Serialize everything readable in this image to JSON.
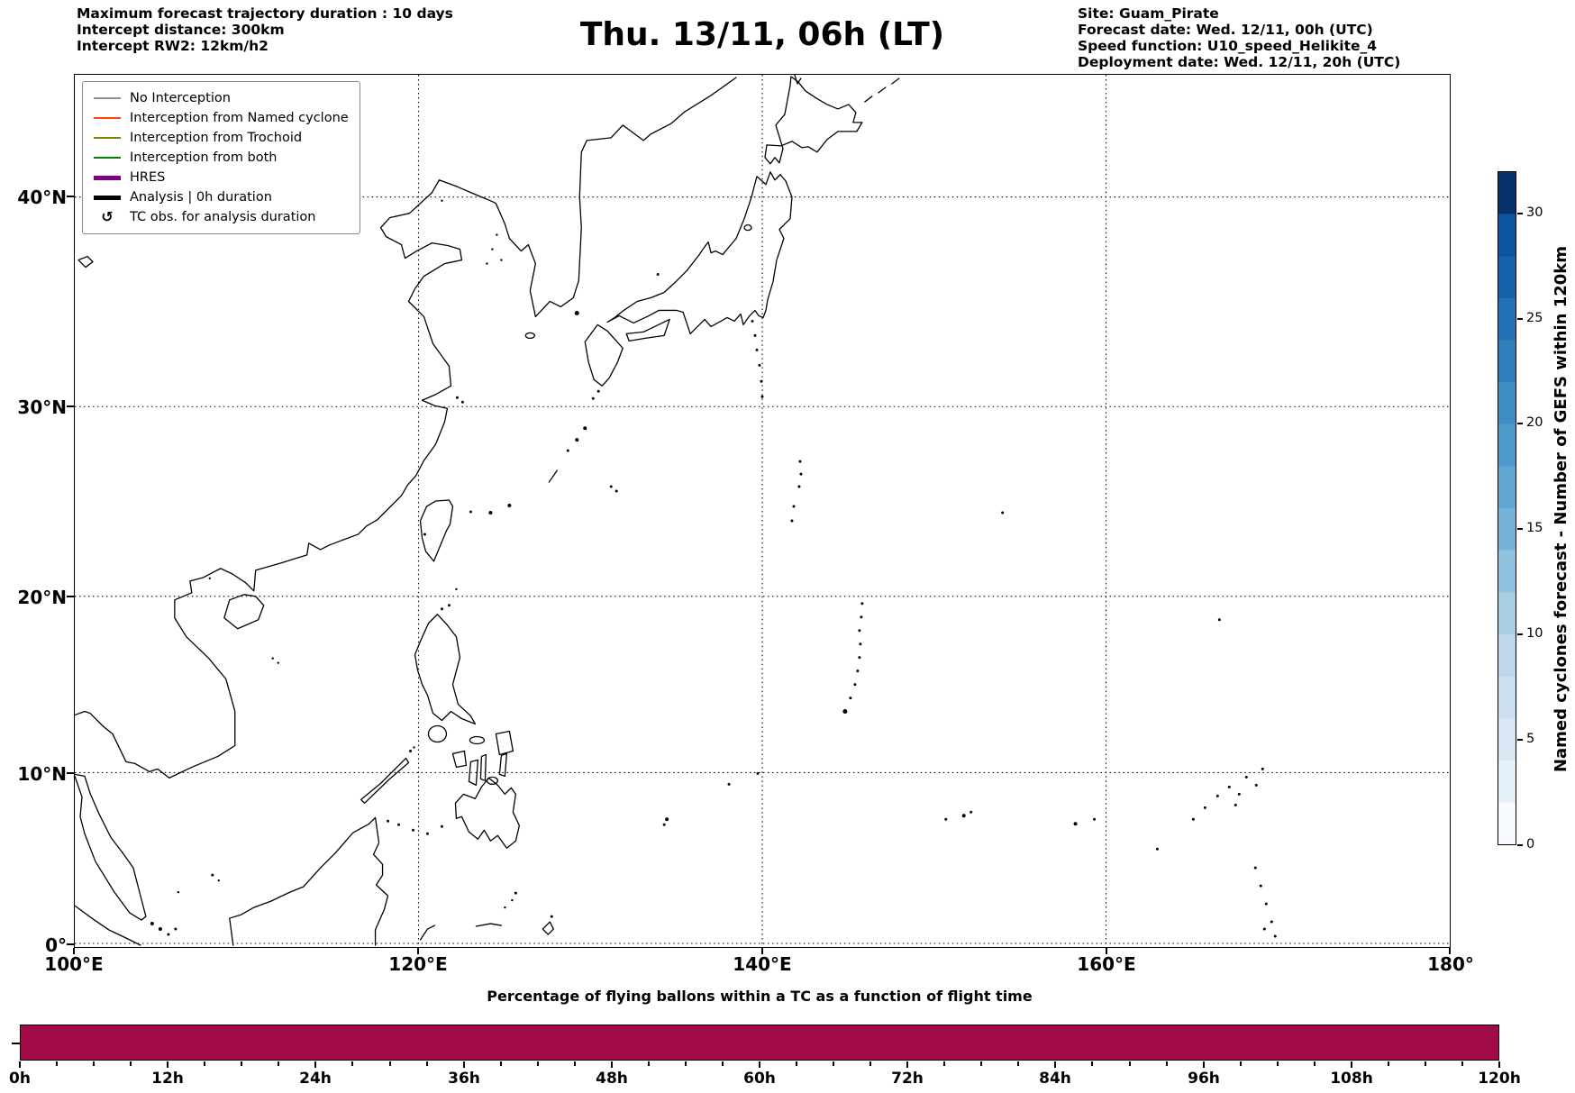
{
  "header": {
    "info_left": {
      "line1": "Maximum forecast trajectory duration : 10 days",
      "line2": "Intercept distance: 300km",
      "line3": "Intercept RW2: 12km/h2"
    },
    "title": "Thu. 13/11, 06h (LT)",
    "info_right": {
      "line1": "Site: Guam_Pirate",
      "line2": "Forecast date: Wed. 12/11, 00h (UTC)",
      "line3": "Speed function: U10_speed_Helikite_4",
      "line4": "Deployment date: Wed. 12/11, 20h (UTC)"
    }
  },
  "legend": {
    "items": [
      {
        "label": "No Interception",
        "color": "#909090",
        "line": "thin"
      },
      {
        "label": "Interception from Named cyclone",
        "color": "#ff4500",
        "line": "thin"
      },
      {
        "label": "Interception from Trochoid",
        "color": "#808000",
        "line": "thin"
      },
      {
        "label": "Interception from both",
        "color": "#008000",
        "line": "thin"
      },
      {
        "label": "HRES",
        "color": "#800080",
        "line": "thick"
      },
      {
        "label": "Analysis | 0h duration",
        "color": "#000000",
        "line": "thick"
      },
      {
        "label": "TC obs. for analysis duration",
        "color": "#000000",
        "line": "symbol",
        "symbol": "↺"
      }
    ]
  },
  "map": {
    "x_ticks": [
      "100°E",
      "120°E",
      "140°E",
      "160°E",
      "180°"
    ],
    "y_ticks": [
      "40°N",
      "30°N",
      "20°N",
      "10°N",
      "0°"
    ]
  },
  "colorbar": {
    "label": "Named cyclones forecast - Number of GEFS within 120km",
    "ticks": [
      "0",
      "5",
      "10",
      "15",
      "20",
      "25",
      "30"
    ],
    "range": [
      0,
      32
    ],
    "colors": [
      "#f7fbff",
      "#e6f0f9",
      "#d9e7f5",
      "#cde0f1",
      "#bdd7ec",
      "#a8cee4",
      "#8fc2de",
      "#75b4d8",
      "#60a7d2",
      "#4d99ca",
      "#3e8ec4",
      "#2e7ebc",
      "#2171b5",
      "#1563aa",
      "#0b559f",
      "#08306b"
    ]
  },
  "bottom": {
    "title": "Percentage of flying ballons within a TC as a function of flight time",
    "x_ticks": [
      "0h",
      "12h",
      "24h",
      "36h",
      "48h",
      "60h",
      "72h",
      "84h",
      "96h",
      "108h",
      "120h"
    ],
    "bar_color": "#a00a46"
  },
  "chart_data": [
    {
      "type": "scatter",
      "title": "Thu. 13/11, 06h (LT)",
      "x_tick_labels": [
        "100°E",
        "120°E",
        "140°E",
        "160°E",
        "180°"
      ],
      "y_tick_labels": [
        "0°",
        "10°N",
        "20°N",
        "30°N",
        "40°N"
      ],
      "xlim": [
        100,
        180
      ],
      "ylim": [
        0,
        45.5
      ],
      "grid": true,
      "legend_position": "upper left",
      "legend_entries": [
        "No Interception",
        "Interception from Named cyclone",
        "Interception from Trochoid",
        "Interception from both",
        "HRES",
        "Analysis | 0h duration",
        "TC obs. for analysis duration"
      ],
      "series": [],
      "note": "Geographic basemap (Western Pacific coastlines) only; no trajectory lines or TC symbols plotted at this forecast step"
    },
    {
      "type": "bar",
      "title": "Percentage of flying ballons within a TC as a function of flight time",
      "categories": [
        "0h-120h"
      ],
      "values": [
        100
      ],
      "x_tick_labels": [
        "0h",
        "12h",
        "24h",
        "36h",
        "48h",
        "60h",
        "72h",
        "84h",
        "96h",
        "108h",
        "120h"
      ],
      "xlim_hours": [
        0,
        120
      ],
      "bar_color": "#a00a46",
      "note": "Single full-height bar spanning the entire 0h-120h flight-time axis"
    }
  ]
}
